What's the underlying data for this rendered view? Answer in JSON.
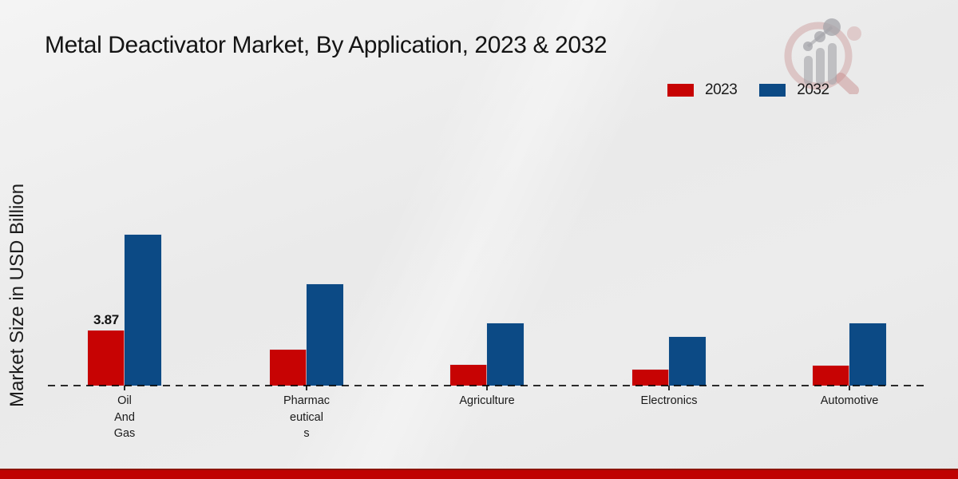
{
  "page": {
    "title": "Metal Deactivator Market, By Application, 2023 & 2032",
    "y_axis_label": "Market Size in USD Billion"
  },
  "legend": {
    "position": "top-right",
    "items": [
      {
        "label": "2023",
        "color": "#c70303"
      },
      {
        "label": "2032",
        "color": "#0c4a85"
      }
    ]
  },
  "colors": {
    "series_2023": "#c70303",
    "series_2032": "#0c4a85",
    "footer_bar": "#bf0101",
    "footer_bar_edge": "#8c1404",
    "text": "#1a1a1a",
    "background": "#ebebeb"
  },
  "chart_data": {
    "type": "bar",
    "title": "Metal Deactivator Market, By Application, 2023 & 2032",
    "xlabel": "",
    "ylabel": "Market Size in USD Billion",
    "categories": [
      "Oil And Gas",
      "Pharmaceuticals",
      "Agriculture",
      "Electronics",
      "Automotive"
    ],
    "category_display_lines": [
      [
        "Oil",
        "And",
        "Gas"
      ],
      [
        "Pharmac",
        "eutical",
        "s"
      ],
      [
        "Agriculture"
      ],
      [
        "Electronics"
      ],
      [
        "Automotive"
      ]
    ],
    "series": [
      {
        "name": "2023",
        "color": "#c70303",
        "values": [
          3.87,
          2.52,
          1.46,
          1.12,
          1.4
        ]
      },
      {
        "name": "2032",
        "color": "#0c4a85",
        "values": [
          10.6,
          7.12,
          4.4,
          3.42,
          4.4
        ]
      }
    ],
    "data_labels": [
      {
        "series": "2023",
        "category": "Oil And Gas",
        "text": "3.87"
      }
    ],
    "ylim": [
      0,
      12
    ],
    "grid": false,
    "y_ticks_visible": false,
    "zero_line_style": "black-dashed",
    "legend_position": "top-right"
  }
}
